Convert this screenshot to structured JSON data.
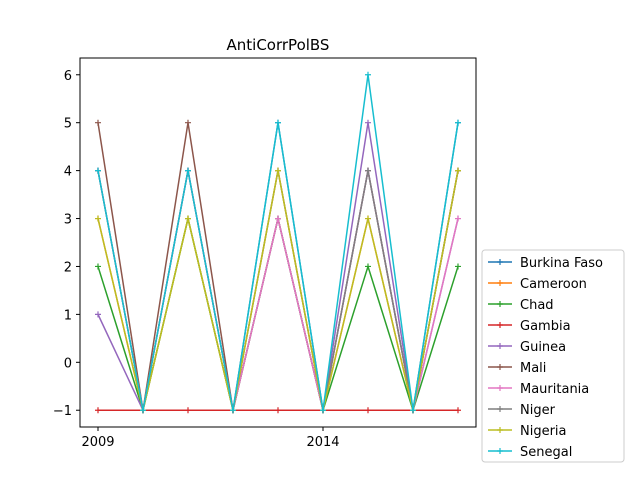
{
  "chart_data": {
    "type": "line",
    "title": "AntiCorrPolBS",
    "xlabel": "",
    "ylabel": "",
    "x": [
      2009,
      2010,
      2011,
      2012,
      2013,
      2014,
      2015,
      2016,
      2017
    ],
    "x_ticks": [
      2009,
      2014
    ],
    "y_ticks": [
      -1,
      0,
      1,
      2,
      3,
      4,
      5,
      6
    ],
    "xlim": [
      2008.6,
      2017.4
    ],
    "ylim": [
      -1.35,
      6.35
    ],
    "grid": false,
    "legend_position": "outside-right-bottom",
    "series": [
      {
        "name": "Burkina Faso",
        "color": "#1f77b4",
        "values": [
          4,
          -1,
          4,
          -1,
          5,
          -1,
          4,
          -1,
          5
        ]
      },
      {
        "name": "Cameroon",
        "color": "#ff7f0e",
        "values": [
          3,
          -1,
          3,
          -1,
          4,
          -1,
          3,
          -1,
          4
        ]
      },
      {
        "name": "Chad",
        "color": "#2ca02c",
        "values": [
          2,
          -1,
          3,
          -1,
          3,
          -1,
          2,
          -1,
          2
        ]
      },
      {
        "name": "Gambia",
        "color": "#d62728",
        "values": [
          -1,
          -1,
          -1,
          -1,
          -1,
          -1,
          -1,
          -1,
          -1
        ]
      },
      {
        "name": "Guinea",
        "color": "#9467bd",
        "values": [
          1,
          -1,
          4,
          -1,
          3,
          -1,
          5,
          -1,
          3
        ]
      },
      {
        "name": "Mali",
        "color": "#8c564b",
        "values": [
          5,
          -1,
          5,
          -1,
          3,
          -1,
          4,
          -1,
          4
        ]
      },
      {
        "name": "Mauritania",
        "color": "#e377c2",
        "values": [
          4,
          -1,
          4,
          -1,
          3,
          -1,
          4,
          -1,
          3
        ]
      },
      {
        "name": "Niger",
        "color": "#7f7f7f",
        "values": [
          4,
          -1,
          4,
          -1,
          4,
          -1,
          4,
          -1,
          4
        ]
      },
      {
        "name": "Nigeria",
        "color": "#bcbd22",
        "values": [
          3,
          -1,
          3,
          -1,
          4,
          -1,
          3,
          -1,
          4
        ]
      },
      {
        "name": "Senegal",
        "color": "#17becf",
        "values": [
          4,
          -1,
          4,
          -1,
          5,
          -1,
          6,
          -1,
          5
        ]
      }
    ]
  }
}
